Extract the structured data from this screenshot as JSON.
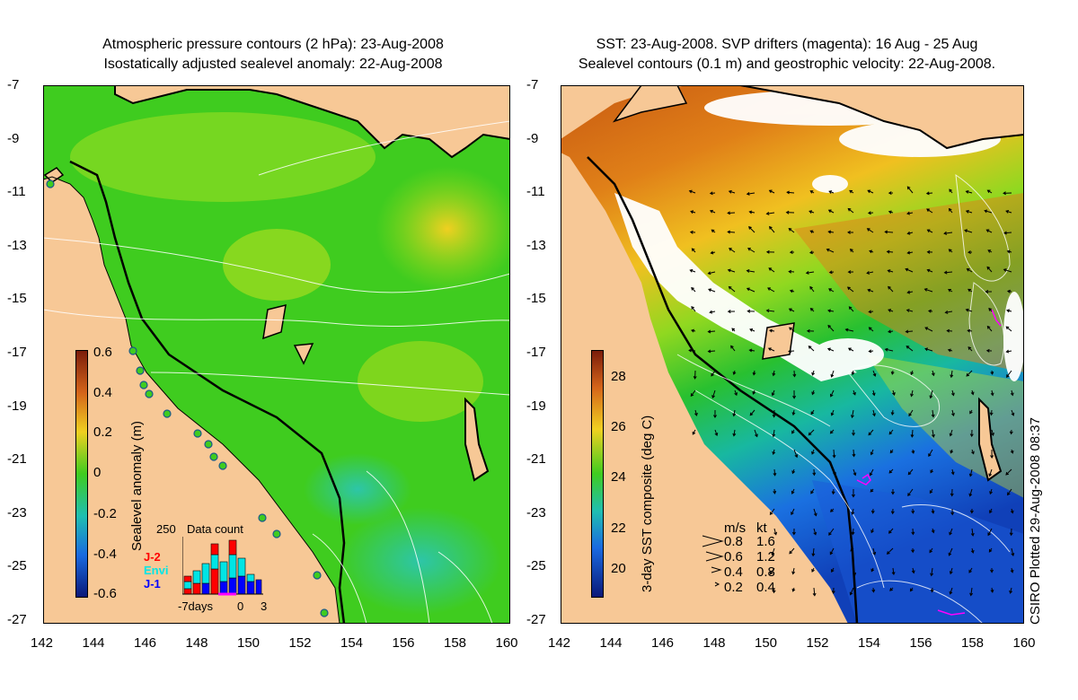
{
  "left_panel": {
    "title_line1": "Atmospheric pressure contours (2 hPa): 23-Aug-2008",
    "title_line2": "Isostatically adjusted sealevel anomaly: 22-Aug-2008",
    "colorbar_label": "Sealevel anomaly (m)",
    "colorbar_ticks": [
      "0.6",
      "0.4",
      "0.2",
      "0",
      "-0.2",
      "-0.4",
      "-0.6"
    ],
    "inset": {
      "title": "Data count",
      "ymax": "250",
      "legend": [
        {
          "label": "J-2",
          "color": "#ff0000"
        },
        {
          "label": "Envi",
          "color": "#00e5e5"
        },
        {
          "label": "J-1",
          "color": "#0000ff"
        }
      ],
      "xlabels": [
        "-7days",
        "0",
        "3"
      ]
    }
  },
  "right_panel": {
    "title_line1": "SST: 23-Aug-2008. SVP drifters (magenta): 16 Aug - 25 Aug",
    "title_line2": "Sealevel contours (0.1 m) and geostrophic velocity: 22-Aug-2008.",
    "colorbar_label": "3-day SST composite (deg C)",
    "colorbar_ticks": [
      "28",
      "26",
      "24",
      "22",
      "20"
    ],
    "velocity_legend": {
      "header_ms": "m/s",
      "header_kt": "kt",
      "rows": [
        {
          "ms": "0.8",
          "kt": "1.6"
        },
        {
          "ms": "0.6",
          "kt": "1.2"
        },
        {
          "ms": "0.4",
          "kt": "0.8"
        },
        {
          "ms": "0.2",
          "kt": "0.4"
        }
      ]
    },
    "footer": "CSIRO Plotted 29-Aug-2008 08:37"
  },
  "axes": {
    "lat_labels": [
      "-7",
      "-9",
      "-11",
      "-13",
      "-15",
      "-17",
      "-19",
      "-21",
      "-23",
      "-25",
      "-27"
    ],
    "lon_labels": [
      "142",
      "144",
      "146",
      "148",
      "150",
      "152",
      "154",
      "156",
      "158",
      "160"
    ]
  },
  "colors": {
    "land": "#f7c896",
    "sla_mid": "#3fcc1f",
    "sst_warm": "#c85a12",
    "sst_cold": "#1e50d0",
    "drifter": "#ff00ff"
  }
}
